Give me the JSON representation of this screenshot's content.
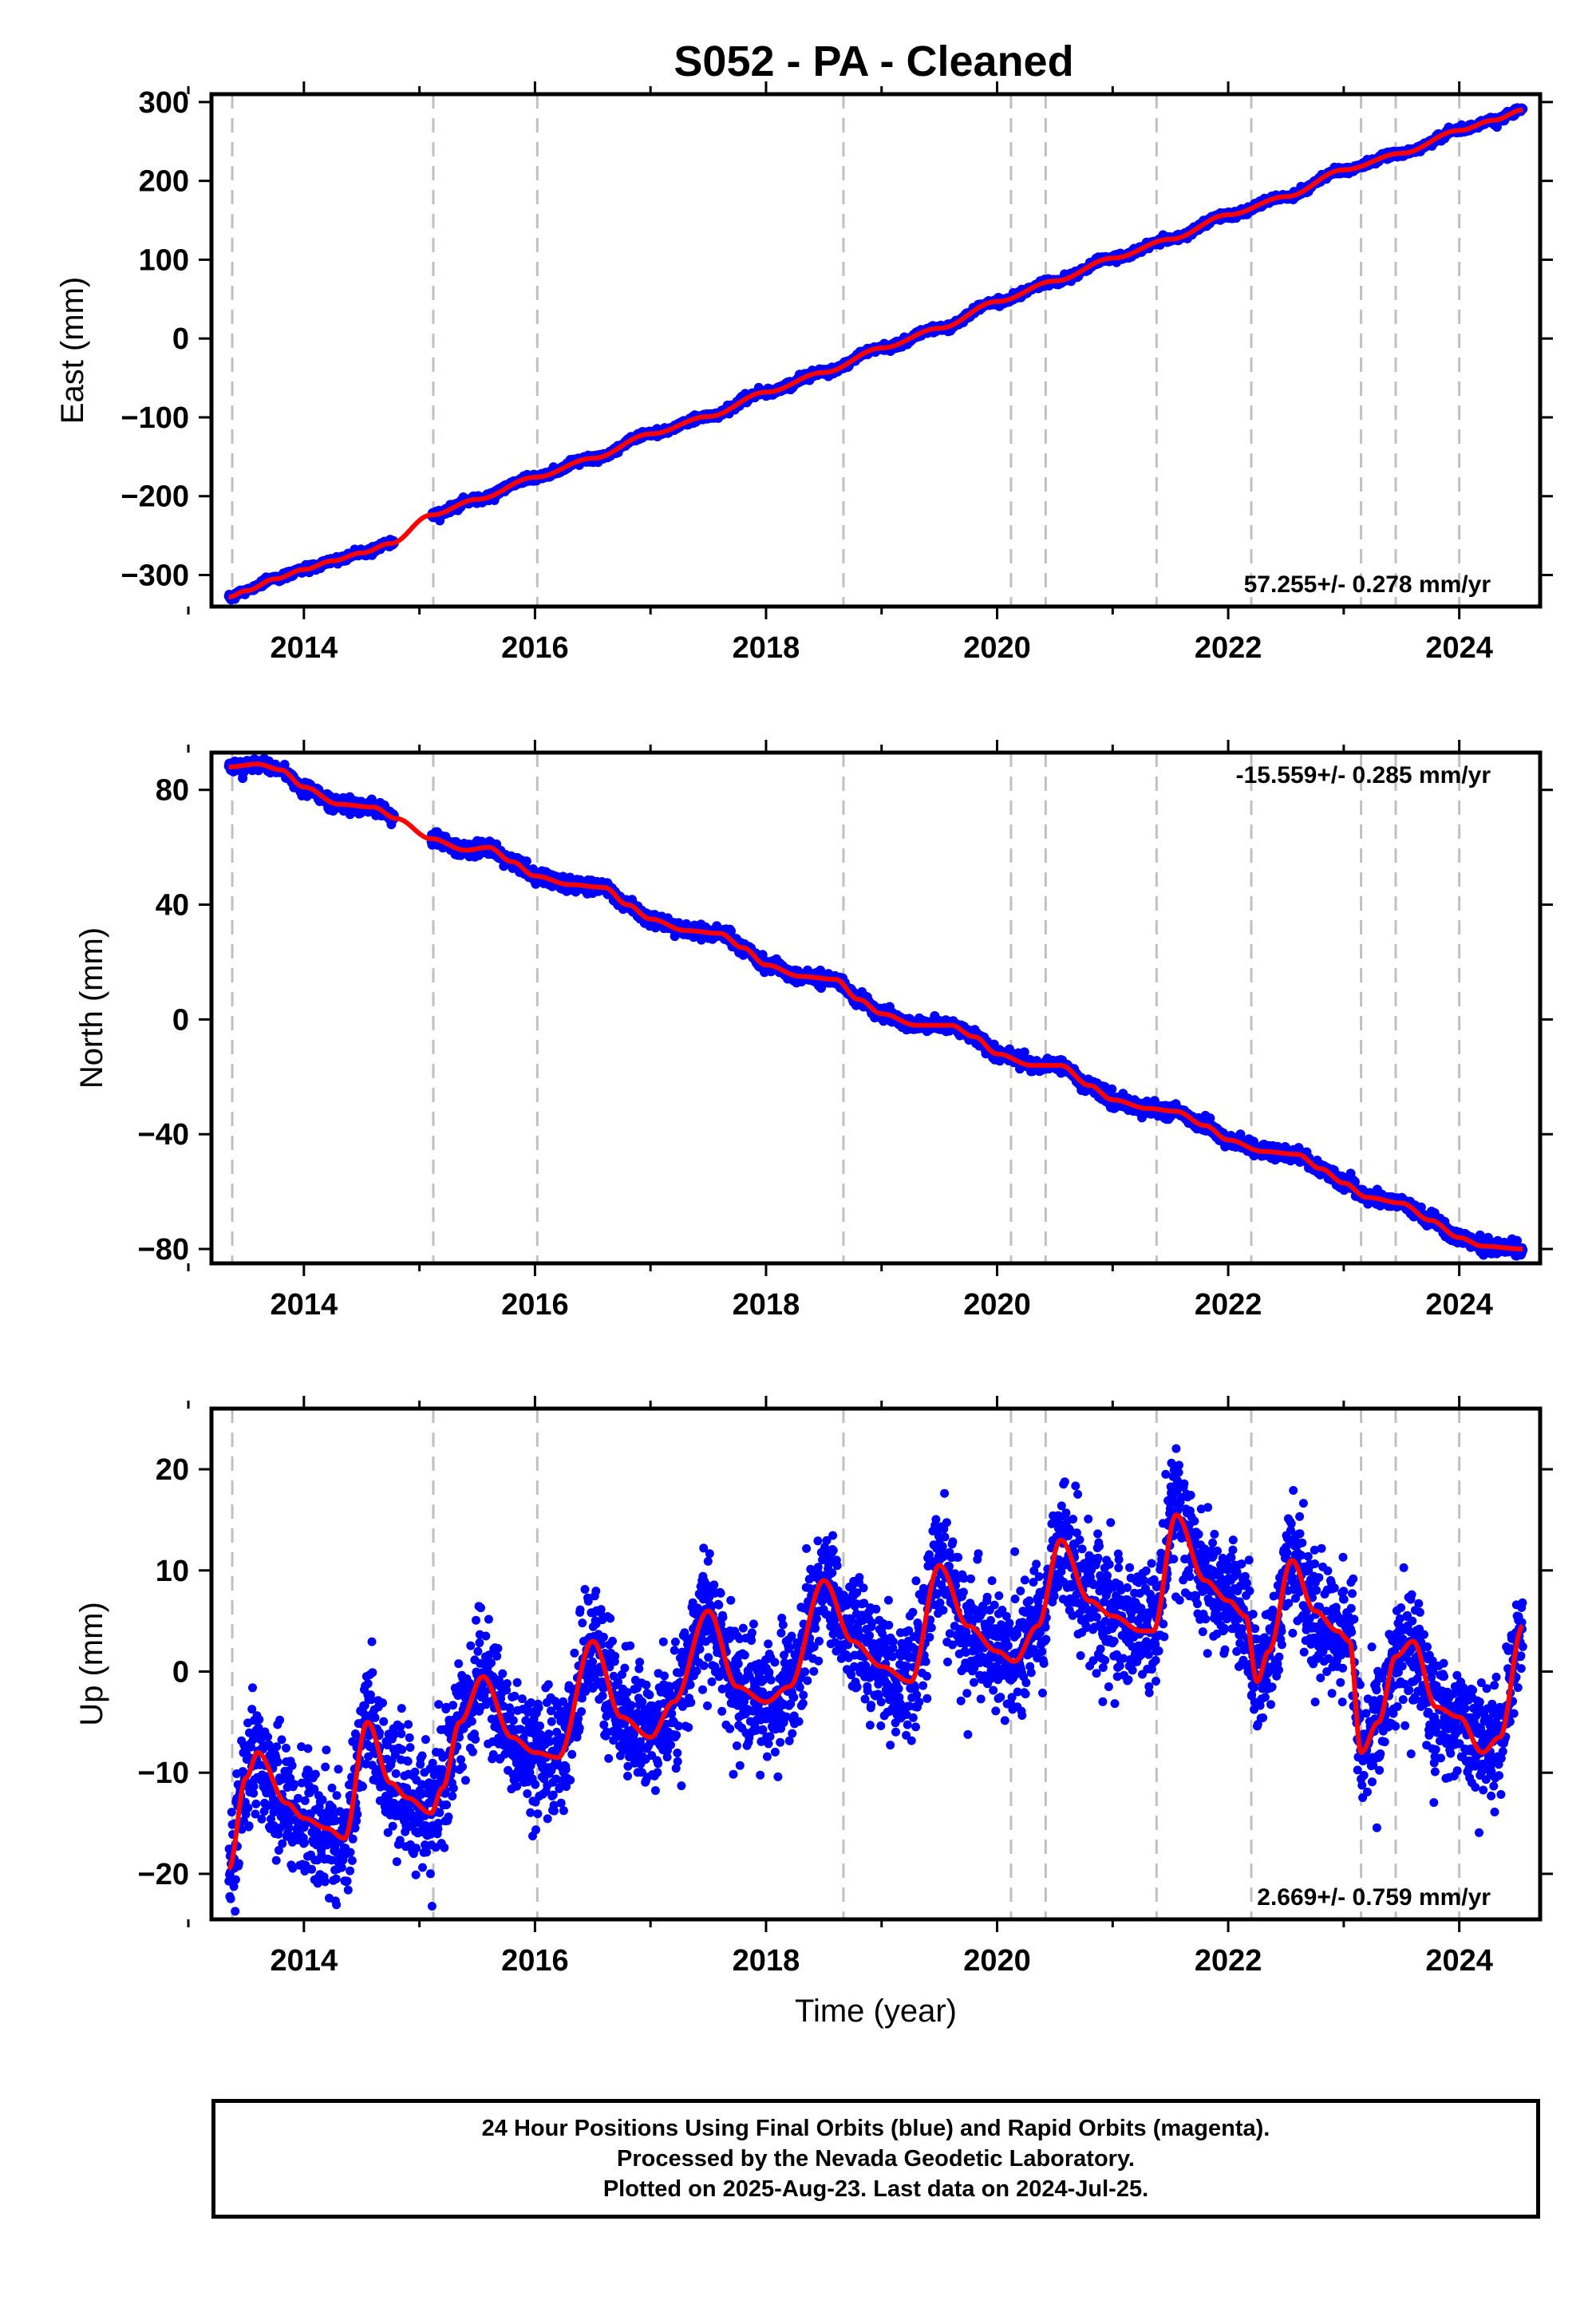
{
  "title": "S052  - PA - Cleaned",
  "colors": {
    "points": "#0000ff",
    "fit": "#ff0000",
    "vline": "#c0c0c0",
    "frame": "#000000"
  },
  "chart_data": [
    {
      "type": "scatter",
      "component": "east",
      "ylabel": "East (mm)",
      "xlim": [
        2013.2,
        2024.7
      ],
      "ylim": [
        -340,
        310
      ],
      "xticks": [
        2014,
        2016,
        2018,
        2020,
        2022,
        2024
      ],
      "xtick_labels": [
        "2014",
        "2016",
        "2018",
        "2020",
        "2022",
        "2024"
      ],
      "yticks": [
        -300,
        -200,
        -100,
        0,
        100,
        200,
        300
      ],
      "ytick_labels": [
        "−300",
        "−200",
        "−100",
        "0",
        "100",
        "200",
        "300"
      ],
      "rate_label": "57.255+/- 0.278 mm/yr",
      "rate_position": "bottom-right",
      "series": [
        {
          "kind": "points",
          "x": [
            2013.35,
            2013.5,
            2013.75,
            2014.0,
            2014.25,
            2014.5,
            2014.75,
            2015.1,
            2015.5,
            2016.0,
            2016.5,
            2017.0,
            2017.5,
            2018.0,
            2018.5,
            2019.0,
            2019.5,
            2020.0,
            2020.5,
            2021.0,
            2021.5,
            2022.0,
            2022.5,
            2023.0,
            2023.5,
            2024.0,
            2024.3,
            2024.55
          ],
          "y": [
            -328,
            -320,
            -305,
            -293,
            -282,
            -272,
            -260,
            -224,
            -204,
            -176,
            -152,
            -121,
            -99,
            -68,
            -43,
            -12,
            13,
            47,
            73,
            102,
            126,
            157,
            180,
            214,
            235,
            264,
            277,
            290
          ]
        },
        {
          "kind": "fit",
          "x": [
            2013.35,
            2013.5,
            2013.75,
            2014.0,
            2014.25,
            2014.5,
            2014.75,
            2015.1,
            2015.5,
            2016.0,
            2016.5,
            2017.0,
            2017.5,
            2018.0,
            2018.5,
            2019.0,
            2019.5,
            2020.0,
            2020.5,
            2021.0,
            2021.5,
            2022.0,
            2022.5,
            2023.0,
            2023.5,
            2024.0,
            2024.3,
            2024.55
          ],
          "y": [
            -328,
            -320,
            -305,
            -293,
            -282,
            -272,
            -260,
            -224,
            -204,
            -176,
            -152,
            -121,
            -99,
            -68,
            -43,
            -12,
            13,
            47,
            73,
            102,
            126,
            157,
            180,
            214,
            235,
            264,
            277,
            290
          ]
        }
      ]
    },
    {
      "type": "scatter",
      "component": "north",
      "ylabel": "North (mm)",
      "xlim": [
        2013.2,
        2024.7
      ],
      "ylim": [
        -85,
        93
      ],
      "xticks": [
        2014,
        2016,
        2018,
        2020,
        2022,
        2024
      ],
      "xtick_labels": [
        "2014",
        "2016",
        "2018",
        "2020",
        "2022",
        "2024"
      ],
      "yticks": [
        -80,
        -40,
        0,
        40,
        80
      ],
      "ytick_labels": [
        "−80",
        "−40",
        "0",
        "40",
        "80"
      ],
      "rate_label": "-15.559+/- 0.285 mm/yr",
      "rate_position": "top-right",
      "series": [
        {
          "kind": "points",
          "x": [
            2013.35,
            2013.6,
            2013.8,
            2014.0,
            2014.3,
            2014.6,
            2014.8,
            2015.1,
            2015.4,
            2015.6,
            2015.8,
            2016.0,
            2016.3,
            2016.6,
            2016.8,
            2017.0,
            2017.3,
            2017.6,
            2017.8,
            2018.0,
            2018.3,
            2018.6,
            2018.8,
            2019.0,
            2019.3,
            2019.6,
            2019.8,
            2020.0,
            2020.3,
            2020.55,
            2020.8,
            2021.0,
            2021.3,
            2021.55,
            2021.8,
            2022.0,
            2022.3,
            2022.6,
            2022.8,
            2023.0,
            2023.2,
            2023.5,
            2023.75,
            2024.0,
            2024.2,
            2024.55
          ],
          "y": [
            88,
            89,
            87,
            81,
            75,
            74,
            70,
            63,
            59,
            60,
            55,
            50,
            47,
            46,
            40,
            35,
            31,
            30,
            25,
            19,
            15,
            14,
            7,
            2,
            -2,
            -2,
            -6,
            -12,
            -16,
            -16,
            -23,
            -28,
            -31,
            -32,
            -37,
            -42,
            -46,
            -47,
            -52,
            -57,
            -62,
            -64,
            -70,
            -76,
            -79,
            -80
          ]
        },
        {
          "kind": "fit",
          "x": [
            2013.35,
            2013.6,
            2013.8,
            2014.0,
            2014.3,
            2014.6,
            2014.8,
            2015.1,
            2015.4,
            2015.6,
            2015.8,
            2016.0,
            2016.3,
            2016.6,
            2016.8,
            2017.0,
            2017.3,
            2017.6,
            2017.8,
            2018.0,
            2018.3,
            2018.6,
            2018.8,
            2019.0,
            2019.3,
            2019.6,
            2019.8,
            2020.0,
            2020.3,
            2020.55,
            2020.8,
            2021.0,
            2021.3,
            2021.55,
            2021.8,
            2022.0,
            2022.3,
            2022.6,
            2022.8,
            2023.0,
            2023.2,
            2023.5,
            2023.75,
            2024.0,
            2024.2,
            2024.55
          ],
          "y": [
            88,
            89,
            87,
            81,
            75,
            74,
            70,
            63,
            59,
            60,
            55,
            50,
            47,
            46,
            40,
            35,
            31,
            30,
            25,
            19,
            15,
            14,
            7,
            2,
            -2,
            -2,
            -6,
            -12,
            -16,
            -16,
            -23,
            -28,
            -31,
            -32,
            -37,
            -42,
            -46,
            -47,
            -52,
            -57,
            -62,
            -64,
            -70,
            -76,
            -79,
            -80
          ]
        }
      ]
    },
    {
      "type": "scatter",
      "component": "up",
      "ylabel": "Up (mm)",
      "xlabel": "Time (year)",
      "xlim": [
        2013.2,
        2024.7
      ],
      "ylim": [
        -24.5,
        26
      ],
      "xticks": [
        2014,
        2016,
        2018,
        2020,
        2022,
        2024
      ],
      "xtick_labels": [
        "2014",
        "2016",
        "2018",
        "2020",
        "2022",
        "2024"
      ],
      "yticks": [
        -20,
        -10,
        0,
        10,
        20
      ],
      "ytick_labels": [
        "−20",
        "−10",
        "0",
        "10",
        "20"
      ],
      "rate_label": "2.669+/- 0.759 mm/yr",
      "rate_position": "bottom-right",
      "noise_std_mm": 3.0,
      "series": [
        {
          "kind": "points",
          "x": [
            2013.35,
            2013.5,
            2013.6,
            2013.85,
            2014.0,
            2014.2,
            2014.35,
            2014.55,
            2014.75,
            2014.9,
            2015.1,
            2015.2,
            2015.35,
            2015.55,
            2015.8,
            2016.0,
            2016.2,
            2016.5,
            2016.75,
            2017.0,
            2017.2,
            2017.5,
            2017.75,
            2018.0,
            2018.2,
            2018.5,
            2018.75,
            2019.0,
            2019.25,
            2019.5,
            2019.75,
            2020.0,
            2020.15,
            2020.35,
            2020.55,
            2020.8,
            2021.0,
            2021.25,
            2021.35,
            2021.55,
            2021.8,
            2022.0,
            2022.15,
            2022.25,
            2022.35,
            2022.55,
            2022.75,
            2022.95,
            2023.05,
            2023.15,
            2023.3,
            2023.45,
            2023.6,
            2023.8,
            2024.0,
            2024.2,
            2024.35,
            2024.55
          ],
          "y": [
            -19.5,
            -10.5,
            -8.0,
            -13.0,
            -14.5,
            -15.5,
            -16.5,
            -5.0,
            -11.0,
            -12.5,
            -14.0,
            -11.5,
            -5.0,
            -0.5,
            -6.5,
            -8.0,
            -8.5,
            3.0,
            -4.5,
            -6.5,
            -3.0,
            6.0,
            -1.5,
            -3.0,
            -1.5,
            9.0,
            3.0,
            0.5,
            -1.0,
            10.5,
            4.5,
            2.0,
            1.0,
            4.5,
            13.0,
            7.0,
            5.5,
            4.0,
            4.0,
            15.5,
            9.0,
            7.0,
            5.5,
            -1.0,
            2.0,
            11.0,
            6.0,
            4.0,
            3.0,
            -8.0,
            -5.0,
            1.5,
            3.0,
            -3.5,
            -4.5,
            -8.0,
            -6.5,
            4.5
          ]
        },
        {
          "kind": "fit",
          "x": [
            2013.35,
            2013.5,
            2013.6,
            2013.85,
            2014.0,
            2014.2,
            2014.35,
            2014.55,
            2014.75,
            2014.9,
            2015.1,
            2015.2,
            2015.35,
            2015.55,
            2015.8,
            2016.0,
            2016.2,
            2016.5,
            2016.75,
            2017.0,
            2017.2,
            2017.5,
            2017.75,
            2018.0,
            2018.2,
            2018.5,
            2018.75,
            2019.0,
            2019.25,
            2019.5,
            2019.75,
            2020.0,
            2020.15,
            2020.35,
            2020.55,
            2020.8,
            2021.0,
            2021.25,
            2021.35,
            2021.55,
            2021.8,
            2022.0,
            2022.15,
            2022.25,
            2022.35,
            2022.55,
            2022.75,
            2022.95,
            2023.05,
            2023.15,
            2023.3,
            2023.45,
            2023.6,
            2023.8,
            2024.0,
            2024.2,
            2024.35,
            2024.55
          ],
          "y": [
            -19.5,
            -10.5,
            -8.0,
            -13.0,
            -14.5,
            -15.5,
            -16.5,
            -5.0,
            -11.0,
            -12.5,
            -14.0,
            -11.5,
            -5.0,
            -0.5,
            -6.5,
            -8.0,
            -8.5,
            3.0,
            -4.5,
            -6.5,
            -3.0,
            6.0,
            -1.5,
            -3.0,
            -1.5,
            9.0,
            3.0,
            0.5,
            -1.0,
            10.5,
            4.5,
            2.0,
            1.0,
            4.5,
            13.0,
            7.0,
            5.5,
            4.0,
            4.0,
            15.5,
            9.0,
            7.0,
            5.5,
            -1.0,
            2.0,
            11.0,
            6.0,
            4.0,
            3.0,
            -8.0,
            -5.0,
            1.5,
            3.0,
            -3.5,
            -4.5,
            -8.0,
            -6.5,
            4.5
          ]
        }
      ]
    }
  ],
  "equipment_changes": [
    2013.38,
    2015.12,
    2016.02,
    2018.67,
    2020.12,
    2020.42,
    2021.38,
    2022.2,
    2023.15,
    2023.45,
    2024.0
  ],
  "footer": {
    "line1": "24 Hour Positions Using Final Orbits (blue) and Rapid Orbits (magenta).",
    "line2": "Processed by the Nevada Geodetic Laboratory.",
    "line3": "Plotted on 2025-Aug-23. Last data on 2024-Jul-25."
  }
}
